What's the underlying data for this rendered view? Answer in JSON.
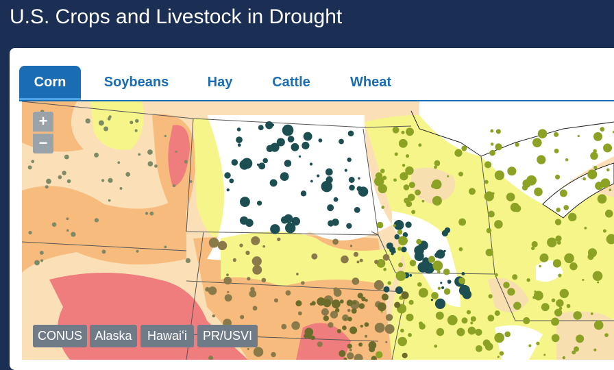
{
  "header": {
    "title": "U.S. Crops and Livestock in Drought"
  },
  "tabs": [
    "Corn",
    "Soybeans",
    "Hay",
    "Cattle",
    "Wheat"
  ],
  "map": {
    "zoom_controls": [
      "+",
      "−"
    ],
    "regions": [
      "CONUS",
      "Alaska",
      "Hawaiʻi",
      "PR/USVI"
    ]
  }
}
